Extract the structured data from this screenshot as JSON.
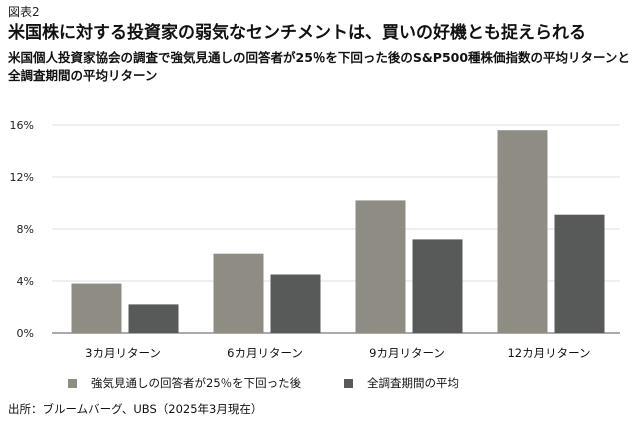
{
  "figure_label": "図表2",
  "title": "米国株に対する投資家の弱気なセンチメントは、買いの好機とも捉えられる",
  "subtitle": "米国個人投資家協会の調査で強気見通しの回答者が25％を下回った後のS&P500種株価指数の平均リターンと全調査期間の平均リターン",
  "source": "出所：ブルームバーグ、UBS（2025年3月現在）",
  "colors": {
    "series1": "#8f8c84",
    "series2": "#585a59",
    "grid": "#d4d4d4",
    "axis": "#555555"
  },
  "chart_data": {
    "type": "bar",
    "categories": [
      "3カ月リターン",
      "6カ月リターン",
      "9カ月リターン",
      "12カ月リターン"
    ],
    "series": [
      {
        "name": "強気見通しの回答者が25％を下回った後",
        "values": [
          3.8,
          6.1,
          10.2,
          15.6
        ]
      },
      {
        "name": "全調査期間の平均",
        "values": [
          2.2,
          4.5,
          7.2,
          9.1
        ]
      }
    ],
    "y_ticks": [
      "0%",
      "4%",
      "8%",
      "12%",
      "16%"
    ],
    "y_tick_values": [
      0,
      4,
      8,
      12,
      16
    ],
    "ylim": [
      0,
      16
    ],
    "grid": true,
    "legend_position": "bottom"
  }
}
